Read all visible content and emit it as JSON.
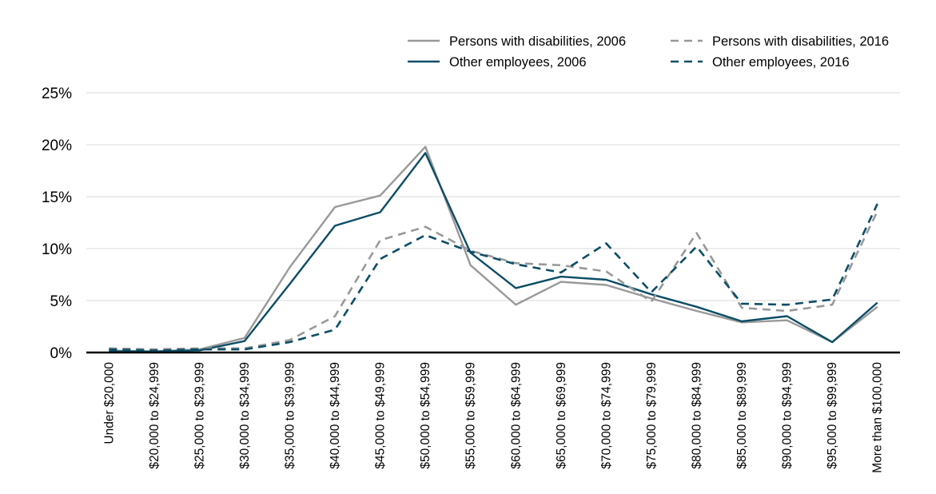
{
  "chart_data": {
    "type": "line",
    "categories": [
      "Under $20,000",
      "$20,000 to $24,999",
      "$25,000 to $29,999",
      "$30,000 to $34,999",
      "$35,000 to $39,999",
      "$40,000 to $44,999",
      "$45,000 to $49,999",
      "$50,000 to $54,999",
      "$55,000 to $59,999",
      "$60,000 to $64,999",
      "$65,000 to $69,999",
      "$70,000 to $74,999",
      "$75,000 to $79,999",
      "$80,000 to $84,999",
      "$85,000 to $89,999",
      "$90,000 to $94,999",
      "$95,000 to $99,999",
      "More than $100,000"
    ],
    "series": [
      {
        "name": "Persons with disabilities, 2006",
        "color": "#999999",
        "dash": "solid",
        "values": [
          0.2,
          0.1,
          0.3,
          1.4,
          8.2,
          14.0,
          15.1,
          19.8,
          8.4,
          4.6,
          6.8,
          6.5,
          5.2,
          4.0,
          2.9,
          3.1,
          1.0,
          4.4
        ]
      },
      {
        "name": "Other employees, 2006",
        "color": "#0b4d66",
        "dash": "solid",
        "values": [
          0.1,
          0.1,
          0.2,
          1.1,
          6.6,
          12.2,
          13.5,
          19.2,
          9.6,
          6.2,
          7.3,
          7.0,
          5.6,
          4.4,
          3.0,
          3.5,
          1.0,
          4.8
        ]
      },
      {
        "name": "Persons with disabilities, 2016",
        "color": "#999999",
        "dash": "dashed",
        "values": [
          0.4,
          0.3,
          0.4,
          0.4,
          1.2,
          3.5,
          10.8,
          12.1,
          9.8,
          8.6,
          8.4,
          7.8,
          4.9,
          11.5,
          4.3,
          4.0,
          4.6,
          13.6
        ]
      },
      {
        "name": "Other employees, 2016",
        "color": "#0b4d66",
        "dash": "dashed",
        "values": [
          0.3,
          0.2,
          0.3,
          0.3,
          1.0,
          2.2,
          9.0,
          11.3,
          9.7,
          8.5,
          7.7,
          10.5,
          5.8,
          10.2,
          4.7,
          4.6,
          5.1,
          14.3
        ]
      }
    ],
    "y_ticks": [
      "0%",
      "5%",
      "10%",
      "15%",
      "20%",
      "25%"
    ],
    "y_tick_values": [
      0,
      5,
      10,
      15,
      20,
      25
    ],
    "ylim": [
      0,
      25
    ],
    "grid": true,
    "legend_position": "top-right",
    "legend_layout": "2x2"
  }
}
